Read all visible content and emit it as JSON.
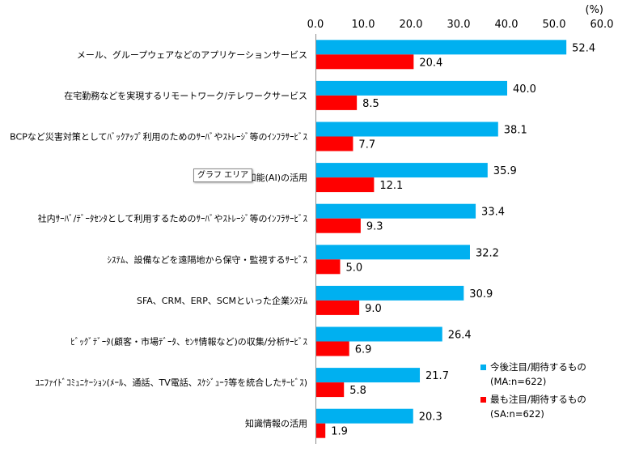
{
  "chart_data": {
    "type": "bar",
    "orientation": "horizontal",
    "unit_label": "(%)",
    "xlim": [
      0,
      60
    ],
    "ticks": [
      "0.0",
      "10.0",
      "20.0",
      "30.0",
      "40.0",
      "50.0",
      "60.0"
    ],
    "categories": [
      "メール、グループウェアなどのアプリケーションサービス",
      "在宅勤務などを実現するリモートワーク/テレワークサービス",
      "BCPなど災害対策としてﾊﾞｯｸｱｯﾌﾟ利用のためのｻｰﾊﾞやｽﾄﾚｰｼﾞ等のｲﾝﾌﾗｻｰﾋﾞｽ",
      "人工知能(AI)の活用",
      "社内ｻｰﾊﾞ/ﾃﾞｰﾀｾﾝﾀとして利用するためのｻｰﾊﾞやｽﾄﾚｰｼﾞ等のｲﾝﾌﾗｻｰﾋﾞｽ",
      "ｼｽﾃﾑ、設備などを遠隔地から保守・監視するｻｰﾋﾞｽ",
      "SFA、CRM、ERP、SCMといった企業ｼｽﾃﾑ",
      "ﾋﾞｯｸﾞﾃﾞｰﾀ(顧客・市場ﾃﾞｰﾀ、ｾﾝｻ情報など)の収集/分析ｻｰﾋﾞｽ",
      "ﾕﾆﾌｧｲﾄﾞｺﾐｭﾆｹｰｼｮﾝ(ﾒｰﾙ、通話、TV電話、ｽｹｼﾞｭｰﾗ等を統合したｻｰﾋﾞｽ)",
      "知識情報の活用"
    ],
    "series": [
      {
        "name": "今後注目/期待するもの",
        "sub": "(MA:n=622)",
        "color": "#00B0F0",
        "values": [
          52.4,
          40.0,
          38.1,
          35.9,
          33.4,
          32.2,
          30.9,
          26.4,
          21.7,
          20.3
        ]
      },
      {
        "name": "最も注目/期待するもの",
        "sub": "(SA:n=622)",
        "color": "#FF0000",
        "values": [
          20.4,
          8.5,
          7.7,
          12.1,
          9.3,
          5.0,
          9.0,
          6.9,
          5.8,
          1.9
        ]
      }
    ]
  },
  "tooltip": "グラフ エリア"
}
